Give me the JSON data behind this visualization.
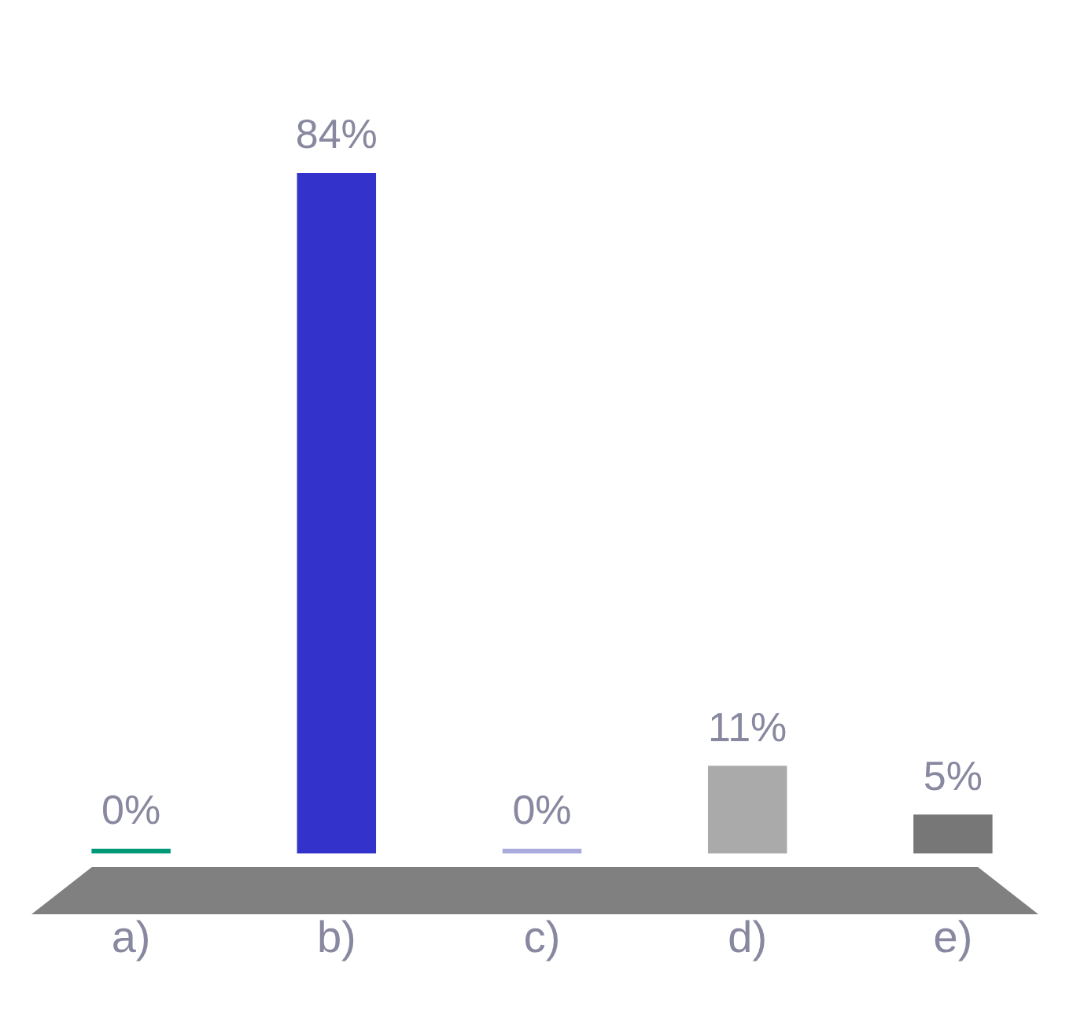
{
  "chart_data": {
    "type": "bar",
    "categories": [
      "a)",
      "b)",
      "c)",
      "d)",
      "e)"
    ],
    "values": [
      0,
      84,
      0,
      11,
      5
    ],
    "colors": [
      "#009977",
      "#3333cc",
      "#aaaadd",
      "#aaaaaa",
      "#777777"
    ],
    "value_labels": [
      "0%",
      "84%",
      "0%",
      "11%",
      "5%"
    ],
    "grid": false,
    "legend": false
  }
}
